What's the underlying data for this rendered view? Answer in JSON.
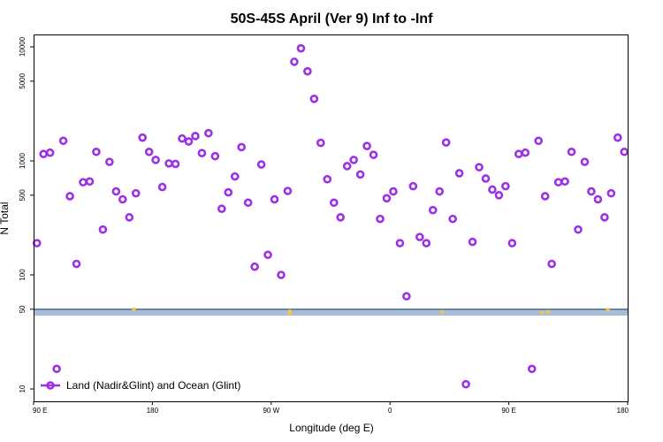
{
  "chart_data": {
    "type": "scatter",
    "title": "50S-45S April (Ver 9)   Inf to -Inf",
    "xlabel": "Longitude (deg E)",
    "ylabel": "N Total",
    "x_tick_labels": [
      "90 E",
      "180",
      "90 W",
      "0",
      "90 E",
      "180"
    ],
    "x_tick_values": [
      90,
      180,
      270,
      360,
      450,
      540
    ],
    "xlim": [
      90,
      540
    ],
    "y_scale": "log",
    "y_tick_labels": [
      "10",
      "50",
      "100",
      "500",
      "1000",
      "5000",
      "10000"
    ],
    "y_tick_values": [
      10,
      50,
      100,
      500,
      1000,
      5000,
      10000
    ],
    "legend": {
      "label": "Land (Nadir&Glint) and Ocean (Glint)",
      "position": "bottom-left"
    },
    "colors": {
      "series": "#9b30e8",
      "band": "#a8bcd8",
      "band_line": "#4a6a8a",
      "land_marks": "#f5c842"
    },
    "map_band": {
      "y_range": [
        44,
        50
      ]
    },
    "land_marks": [
      [
        166,
        50
      ],
      [
        284,
        48
      ],
      [
        284,
        46
      ],
      [
        399,
        47.5
      ],
      [
        480,
        47.5
      ],
      [
        475,
        47
      ],
      [
        525,
        49.5
      ]
    ],
    "series": [
      {
        "name": "Land (Nadir&Glint) and Ocean (Glint)",
        "points": [
          [
            92.5,
            190
          ],
          [
            97.5,
            1150
          ],
          [
            102.5,
            1180
          ],
          [
            107.5,
            15
          ],
          [
            112.5,
            1500
          ],
          [
            117.5,
            490
          ],
          [
            122.5,
            125
          ],
          [
            127.5,
            650
          ],
          [
            132.5,
            660
          ],
          [
            137.5,
            1200
          ],
          [
            142.5,
            250
          ],
          [
            147.5,
            980
          ],
          [
            152.5,
            540
          ],
          [
            157.5,
            460
          ],
          [
            162.5,
            320
          ],
          [
            167.5,
            520
          ],
          [
            172.5,
            1600
          ],
          [
            177.5,
            1200
          ],
          [
            182.5,
            1020
          ],
          [
            187.5,
            590
          ],
          [
            192.5,
            950
          ],
          [
            197.5,
            940
          ],
          [
            202.5,
            1570
          ],
          [
            207.5,
            1480
          ],
          [
            212.5,
            1650
          ],
          [
            217.5,
            1170
          ],
          [
            222.5,
            1750
          ],
          [
            227.5,
            1100
          ],
          [
            232.5,
            380
          ],
          [
            237.5,
            530
          ],
          [
            242.5,
            730
          ],
          [
            247.5,
            1320
          ],
          [
            252.5,
            430
          ],
          [
            257.5,
            118
          ],
          [
            262.5,
            930
          ],
          [
            267.5,
            150
          ],
          [
            272.5,
            460
          ],
          [
            277.5,
            100
          ],
          [
            282.5,
            545
          ],
          [
            287.5,
            7400
          ],
          [
            292.5,
            9700
          ],
          [
            297.5,
            6100
          ],
          [
            302.5,
            3500
          ],
          [
            307.5,
            1440
          ],
          [
            312.5,
            690
          ],
          [
            317.5,
            430
          ],
          [
            322.5,
            320
          ],
          [
            327.5,
            900
          ],
          [
            332.5,
            1020
          ],
          [
            337.5,
            760
          ],
          [
            342.5,
            1350
          ],
          [
            347.5,
            1130
          ],
          [
            352.5,
            310
          ],
          [
            357.5,
            470
          ],
          [
            362.5,
            540
          ],
          [
            367.5,
            190
          ],
          [
            372.5,
            65
          ],
          [
            377.5,
            600
          ],
          [
            382.5,
            215
          ],
          [
            387.5,
            190
          ],
          [
            392.5,
            370
          ],
          [
            397.5,
            540
          ],
          [
            402.5,
            1450
          ],
          [
            407.5,
            310
          ],
          [
            412.5,
            780
          ],
          [
            417.5,
            11
          ],
          [
            422.5,
            195
          ],
          [
            427.5,
            880
          ],
          [
            432.5,
            700
          ],
          [
            437.5,
            560
          ],
          [
            442.5,
            500
          ],
          [
            447.5,
            600
          ],
          [
            452.5,
            190
          ],
          [
            457.5,
            1150
          ],
          [
            462.5,
            1180
          ],
          [
            467.5,
            15
          ],
          [
            472.5,
            1500
          ],
          [
            477.5,
            490
          ],
          [
            482.5,
            125
          ],
          [
            487.5,
            650
          ],
          [
            492.5,
            660
          ],
          [
            497.5,
            1200
          ],
          [
            502.5,
            250
          ],
          [
            507.5,
            980
          ],
          [
            512.5,
            540
          ],
          [
            517.5,
            460
          ],
          [
            522.5,
            320
          ],
          [
            527.5,
            520
          ],
          [
            532.5,
            1600
          ],
          [
            537.5,
            1200
          ]
        ]
      }
    ]
  }
}
